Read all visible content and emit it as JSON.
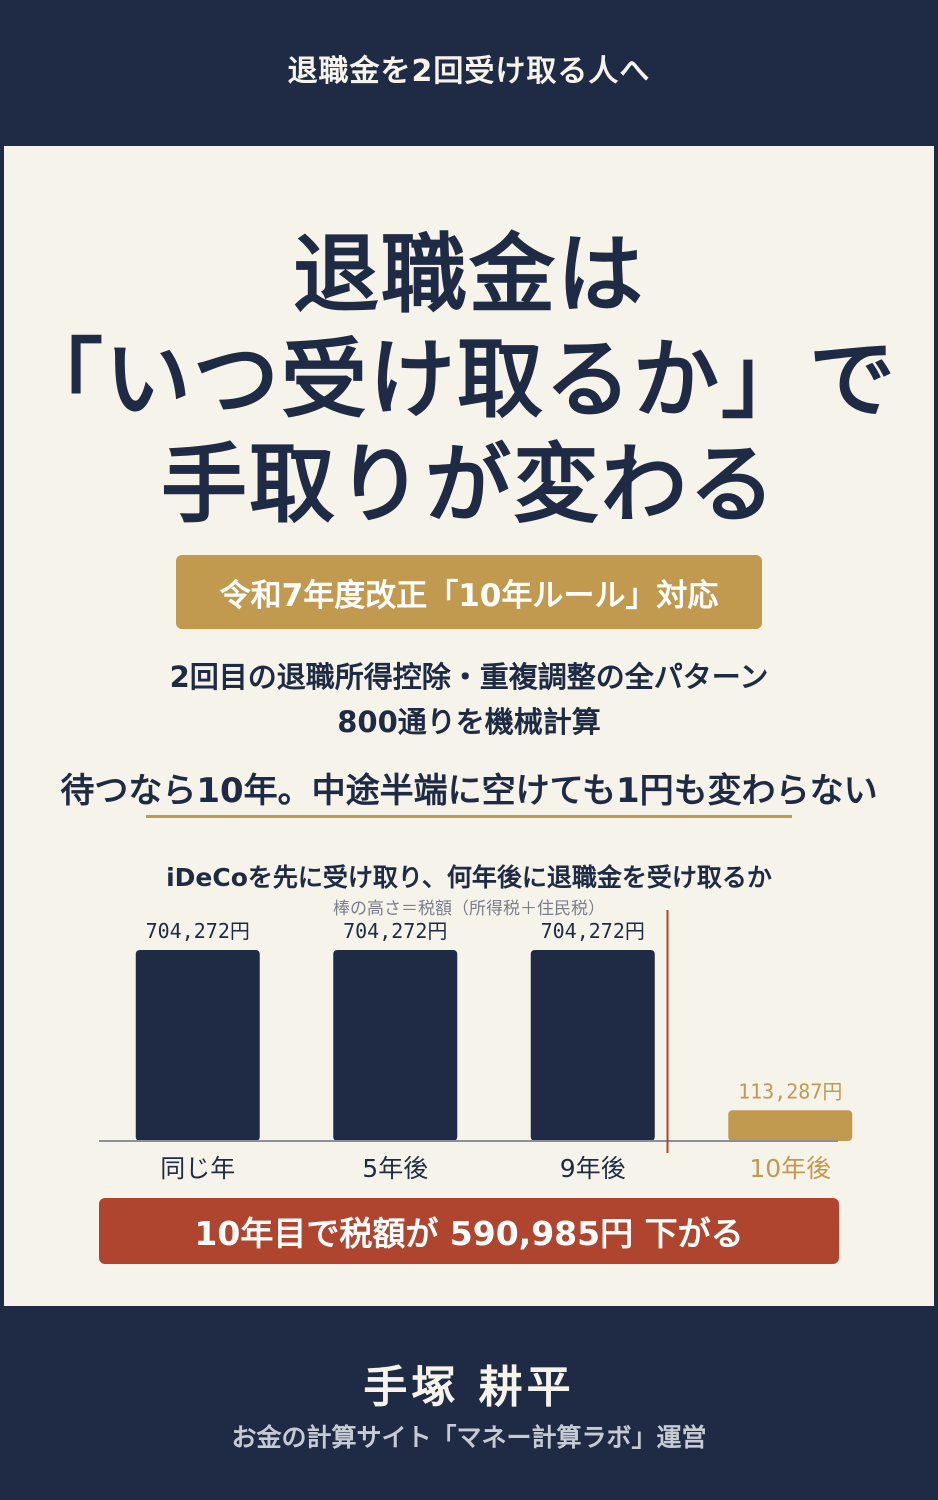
{
  "header": {
    "text": "退職金を2回受け取る人へ"
  },
  "title": {
    "line1": "退職金は",
    "line2": "「いつ受け取るか」で",
    "line3": "手取りが変わる"
  },
  "badge": "令和7年度改正「10年ルール」対応",
  "subtitle": {
    "line1": "2回目の退職所得控除・重複調整の全パターン",
    "line2": "800通りを機械計算"
  },
  "tagline": "待つなら10年。中途半端に空けても1円も変わらない",
  "chart_data": {
    "type": "bar",
    "title": "iDeCoを先に受け取り、何年後に退職金を受け取るか",
    "subtitle": "棒の高さ＝税額（所得税＋住民税）",
    "categories": [
      "同じ年",
      "5年後",
      "9年後",
      "10年後"
    ],
    "values": [
      704272,
      704272,
      704272,
      113287
    ],
    "value_labels": [
      "704,272円",
      "704,272円",
      "704,272円",
      "113,287円"
    ],
    "bar_colors": [
      "#1f2a44",
      "#1f2a44",
      "#1f2a44",
      "#c29a4f"
    ],
    "highlight_index": 3,
    "divider_before_index": 3,
    "ylim": [
      0,
      704272
    ]
  },
  "result": "10年目で税額が 590,985円 下がる",
  "footer": {
    "author": "手塚 耕平",
    "affiliation": "お金の計算サイト「マネー計算ラボ」運営"
  },
  "colors": {
    "navy": "#1f2a44",
    "gold": "#c29a4f",
    "red": "#b0452f",
    "paper": "#f6f3ea"
  }
}
